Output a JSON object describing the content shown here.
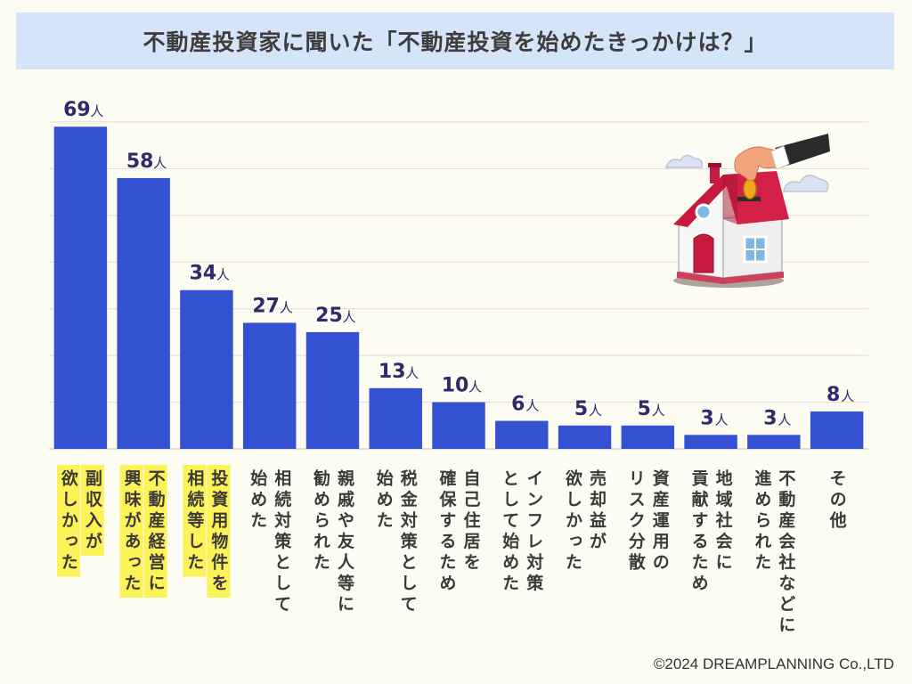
{
  "title": "不動産投資家に聞いた「不動産投資を始めたきっかけは？」",
  "copyright": "©2024 DREAMPLANNING Co.,LTD",
  "colors": {
    "bar": "#3451d1",
    "value_text": "#2f2a6b",
    "label_text": "#3a3a3a",
    "highlight": "#fbf357",
    "grid": "#e6d8d8",
    "axis": "#bbbbbb"
  },
  "illustration": "house-with-hand-inserting-coin",
  "chart_data": {
    "type": "bar",
    "title": "不動産投資家に聞いた「不動産投資を始めたきっかけは？」",
    "unit": "人",
    "xlabel": "",
    "ylabel": "",
    "ylim": [
      0,
      70
    ],
    "grid": true,
    "categories": [
      {
        "lines": [
          "副収入が",
          "欲しかった"
        ],
        "highlight": true
      },
      {
        "lines": [
          "不動産経営に",
          "興味があった"
        ],
        "highlight": true
      },
      {
        "lines": [
          "投資用物件を",
          "相続等した"
        ],
        "highlight": true
      },
      {
        "lines": [
          "相続対策として",
          "始めた"
        ],
        "highlight": false
      },
      {
        "lines": [
          "親戚や友人等に",
          "勧められた"
        ],
        "highlight": false
      },
      {
        "lines": [
          "税金対策として",
          "始めた"
        ],
        "highlight": false
      },
      {
        "lines": [
          "自己住居を",
          "確保するため"
        ],
        "highlight": false
      },
      {
        "lines": [
          "インフレ対策",
          "として始めた"
        ],
        "highlight": false
      },
      {
        "lines": [
          "売却益が",
          "欲しかった"
        ],
        "highlight": false
      },
      {
        "lines": [
          "資産運用の",
          "リスク分散"
        ],
        "highlight": false
      },
      {
        "lines": [
          "地域社会に",
          "貢献するため"
        ],
        "highlight": false
      },
      {
        "lines": [
          "不動産会社などに",
          "進められた"
        ],
        "highlight": false
      },
      {
        "lines": [
          "その他"
        ],
        "highlight": false
      }
    ],
    "values": [
      69,
      58,
      34,
      27,
      25,
      13,
      10,
      6,
      5,
      5,
      3,
      3,
      8
    ]
  }
}
